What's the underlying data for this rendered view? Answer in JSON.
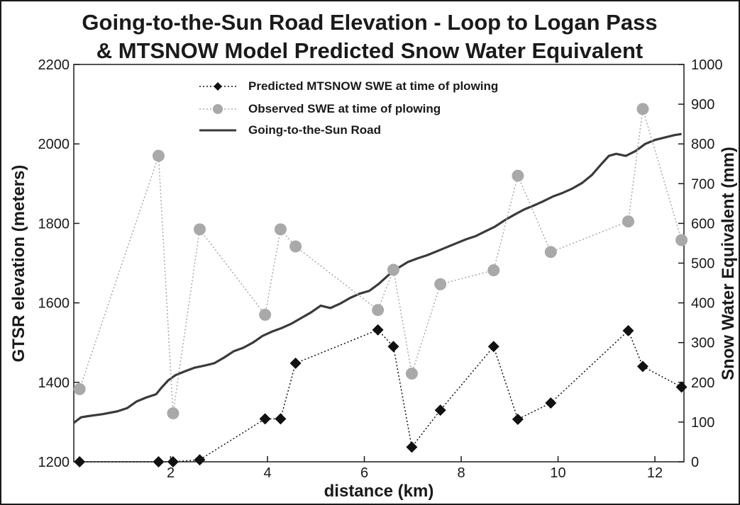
{
  "chart_data": {
    "type": "line",
    "title_line1": "Going-to-the-Sun Road Elevation - Loop to Logan Pass",
    "title_line2": "& MTSNOW Model Predicted Snow Water Equivalent",
    "xlabel": "distance (km)",
    "ylabel_left": "GTSR elevation (meters)",
    "ylabel_right": "Snow Water Equivalent (mm)",
    "xlim": [
      0,
      12.6
    ],
    "ylim_left": [
      1200,
      2200
    ],
    "ylim_right": [
      0,
      1000
    ],
    "x_ticks": [
      2,
      4,
      6,
      8,
      10,
      12
    ],
    "y_ticks_left": [
      1200,
      1400,
      1600,
      1800,
      2000,
      2200
    ],
    "y_ticks_right": [
      0,
      100,
      200,
      300,
      400,
      500,
      600,
      700,
      800,
      900,
      1000
    ],
    "legend_position": "top-center",
    "series": [
      {
        "name": "Predicted MTSNOW SWE at time of plowing",
        "axis": "right",
        "style": "dotted-diamond",
        "color": "#111111",
        "x": [
          0.12,
          1.75,
          2.05,
          2.6,
          3.95,
          4.27,
          4.58,
          6.28,
          6.6,
          6.98,
          7.57,
          8.67,
          9.17,
          9.85,
          11.45,
          11.75,
          12.55
        ],
        "y": [
          0,
          0,
          0,
          5,
          108,
          108,
          248,
          332,
          290,
          37,
          130,
          290,
          107,
          148,
          330,
          240,
          188
        ]
      },
      {
        "name": "Observed SWE at time of plowing",
        "axis": "right",
        "style": "dotted-circle",
        "color": "#a9a9a9",
        "x": [
          0.12,
          1.75,
          2.05,
          2.6,
          3.95,
          4.27,
          4.58,
          6.28,
          6.6,
          6.98,
          7.57,
          8.67,
          9.17,
          9.85,
          11.45,
          11.75,
          12.55
        ],
        "y": [
          183,
          770,
          122,
          585,
          370,
          585,
          542,
          382,
          483,
          222,
          447,
          482,
          720,
          528,
          605,
          888,
          558
        ]
      },
      {
        "name": "Going-to-the-Sun Road",
        "axis": "left",
        "style": "solid",
        "color": "#3a3a3a",
        "x": [
          0,
          0.15,
          0.3,
          0.6,
          0.9,
          1.1,
          1.3,
          1.5,
          1.7,
          1.8,
          1.95,
          2.1,
          2.3,
          2.5,
          2.7,
          2.9,
          3.1,
          3.3,
          3.5,
          3.7,
          3.9,
          4.1,
          4.3,
          4.5,
          4.7,
          4.9,
          5.1,
          5.3,
          5.5,
          5.7,
          5.9,
          6.1,
          6.3,
          6.5,
          6.7,
          6.9,
          7.1,
          7.3,
          7.5,
          7.7,
          7.9,
          8.1,
          8.3,
          8.5,
          8.7,
          8.9,
          9.1,
          9.3,
          9.5,
          9.7,
          9.9,
          10.1,
          10.3,
          10.5,
          10.7,
          10.9,
          11.05,
          11.2,
          11.4,
          11.6,
          11.8,
          12.0,
          12.2,
          12.4,
          12.55
        ],
        "y": [
          1298,
          1312,
          1315,
          1320,
          1327,
          1335,
          1352,
          1362,
          1370,
          1385,
          1405,
          1418,
          1428,
          1437,
          1442,
          1448,
          1462,
          1478,
          1487,
          1500,
          1517,
          1528,
          1537,
          1548,
          1562,
          1576,
          1593,
          1587,
          1598,
          1612,
          1623,
          1630,
          1648,
          1670,
          1688,
          1703,
          1712,
          1720,
          1730,
          1740,
          1750,
          1760,
          1768,
          1780,
          1792,
          1808,
          1822,
          1835,
          1845,
          1856,
          1868,
          1877,
          1888,
          1902,
          1922,
          1950,
          1970,
          1975,
          1970,
          1982,
          2000,
          2010,
          2016,
          2022,
          2025
        ]
      }
    ]
  }
}
